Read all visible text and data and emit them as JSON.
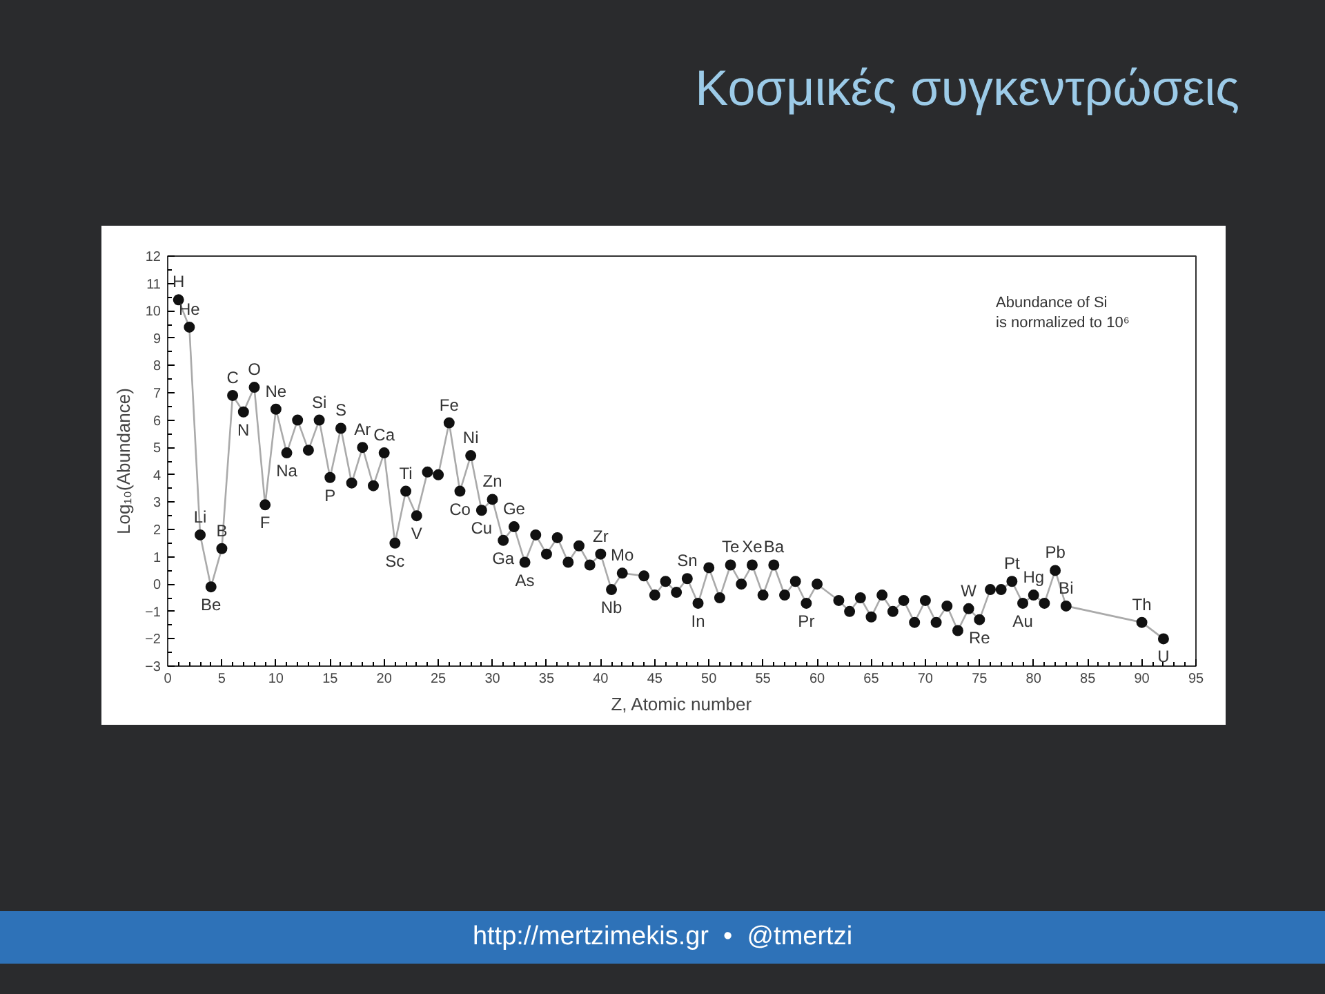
{
  "chart_data": {
    "type": "line",
    "title": "Κοσμικές συγκεντρώσεις",
    "xlabel": "Z, Atomic number",
    "ylabel": "Log₁₀(Abundance)",
    "x": [
      1,
      2,
      3,
      4,
      5,
      6,
      7,
      8,
      9,
      10,
      11,
      12,
      13,
      14,
      15,
      16,
      17,
      18,
      19,
      20,
      21,
      22,
      23,
      24,
      25,
      26,
      27,
      28,
      29,
      30,
      31,
      32,
      33,
      34,
      35,
      36,
      37,
      38,
      39,
      40,
      41,
      42,
      44,
      45,
      46,
      47,
      48,
      49,
      50,
      51,
      52,
      53,
      54,
      55,
      56,
      57,
      58,
      59,
      60,
      62,
      63,
      64,
      65,
      66,
      67,
      68,
      69,
      70,
      71,
      72,
      73,
      74,
      75,
      76,
      77,
      78,
      79,
      80,
      81,
      82,
      83,
      90,
      92
    ],
    "series": [
      {
        "color": "#111111",
        "values": [
          10.4,
          9.4,
          1.8,
          -0.1,
          1.3,
          6.9,
          6.3,
          7.2,
          2.9,
          6.4,
          4.8,
          6.0,
          4.9,
          6.0,
          3.9,
          5.7,
          3.7,
          5.0,
          3.6,
          4.8,
          1.5,
          3.4,
          2.5,
          4.1,
          4.0,
          5.9,
          3.4,
          4.7,
          2.7,
          3.1,
          1.6,
          2.1,
          0.8,
          1.8,
          1.1,
          1.7,
          0.8,
          1.4,
          0.7,
          1.1,
          -0.2,
          0.4,
          0.3,
          -0.4,
          0.1,
          -0.3,
          0.2,
          -0.7,
          0.6,
          -0.5,
          0.7,
          0.0,
          0.7,
          -0.4,
          0.7,
          -0.4,
          0.1,
          -0.7,
          0.0,
          -0.6,
          -1.0,
          -0.5,
          -1.2,
          -0.4,
          -1.0,
          -0.6,
          -1.4,
          -0.6,
          -1.4,
          -0.8,
          -1.7,
          -0.9,
          -1.3,
          -0.2,
          -0.2,
          0.1,
          -0.7,
          -0.4,
          -0.7,
          0.5,
          -0.8,
          -1.4,
          -2.0
        ]
      }
    ],
    "xlim": [
      0,
      95
    ],
    "xticks": [
      0,
      5,
      10,
      15,
      20,
      25,
      30,
      35,
      40,
      45,
      50,
      55,
      60,
      65,
      70,
      75,
      80,
      85,
      90,
      95
    ],
    "ylim": [
      -3,
      12
    ],
    "yticks": [
      -3,
      -2,
      -1,
      0,
      1,
      2,
      3,
      4,
      5,
      6,
      7,
      8,
      9,
      10,
      11,
      12
    ],
    "marker": "circle",
    "line_style": "solid",
    "grid": false,
    "annotations": [
      {
        "text": "H",
        "x": 1,
        "y": 10.4
      },
      {
        "text": "He",
        "x": 2,
        "y": 9.4
      },
      {
        "text": "Li",
        "x": 3,
        "y": 1.8
      },
      {
        "text": "Be",
        "x": 4,
        "y": -0.1
      },
      {
        "text": "B",
        "x": 5,
        "y": 1.3
      },
      {
        "text": "C",
        "x": 6,
        "y": 6.9
      },
      {
        "text": "N",
        "x": 7,
        "y": 6.3
      },
      {
        "text": "O",
        "x": 8,
        "y": 7.2
      },
      {
        "text": "F",
        "x": 9,
        "y": 2.9
      },
      {
        "text": "Ne",
        "x": 10,
        "y": 6.4
      },
      {
        "text": "Na",
        "x": 11,
        "y": 4.8
      },
      {
        "text": "Si",
        "x": 14,
        "y": 6.0
      },
      {
        "text": "P",
        "x": 15,
        "y": 3.9
      },
      {
        "text": "S",
        "x": 16,
        "y": 5.7
      },
      {
        "text": "Ar",
        "x": 18,
        "y": 5.0
      },
      {
        "text": "Ca",
        "x": 20,
        "y": 4.8
      },
      {
        "text": "Sc",
        "x": 21,
        "y": 1.5
      },
      {
        "text": "Ti",
        "x": 22,
        "y": 3.4
      },
      {
        "text": "V",
        "x": 23,
        "y": 2.5
      },
      {
        "text": "Fe",
        "x": 26,
        "y": 5.9
      },
      {
        "text": "Co",
        "x": 27,
        "y": 3.4
      },
      {
        "text": "Ni",
        "x": 28,
        "y": 4.7
      },
      {
        "text": "Cu",
        "x": 29,
        "y": 2.7
      },
      {
        "text": "Zn",
        "x": 30,
        "y": 3.1
      },
      {
        "text": "Ga",
        "x": 31,
        "y": 1.6
      },
      {
        "text": "Ge",
        "x": 32,
        "y": 2.1
      },
      {
        "text": "As",
        "x": 33,
        "y": 0.8
      },
      {
        "text": "Zr",
        "x": 40,
        "y": 1.1
      },
      {
        "text": "Nb",
        "x": 41,
        "y": -0.2
      },
      {
        "text": "Mo",
        "x": 42,
        "y": 0.4
      },
      {
        "text": "Sn",
        "x": 48,
        "y": 0.2
      },
      {
        "text": "In",
        "x": 49,
        "y": -0.7
      },
      {
        "text": "Te",
        "x": 52,
        "y": 0.7
      },
      {
        "text": "Xe",
        "x": 54,
        "y": 0.7
      },
      {
        "text": "Ba",
        "x": 56,
        "y": 0.7
      },
      {
        "text": "Pr",
        "x": 59,
        "y": -0.7
      },
      {
        "text": "W",
        "x": 74,
        "y": -0.9
      },
      {
        "text": "Re",
        "x": 75,
        "y": -1.3
      },
      {
        "text": "Pt",
        "x": 78,
        "y": 0.1
      },
      {
        "text": "Au",
        "x": 79,
        "y": -0.7
      },
      {
        "text": "Hg",
        "x": 80,
        "y": -0.4
      },
      {
        "text": "Pb",
        "x": 82,
        "y": 0.5
      },
      {
        "text": "Bi",
        "x": 83,
        "y": -0.8
      },
      {
        "text": "Th",
        "x": 90,
        "y": -1.4
      },
      {
        "text": "U",
        "x": 92,
        "y": -2.0
      },
      "Abundance of Si\nis normalized to 10⁶",
      "http://mertzimekis.gr  •  @tmertzi"
    ]
  }
}
